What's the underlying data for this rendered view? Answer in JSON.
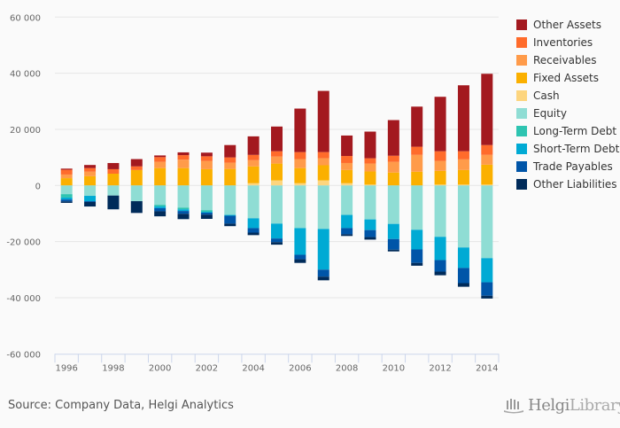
{
  "chart_data": {
    "type": "bar",
    "stacked": true,
    "title": "",
    "xlabel": "",
    "ylabel": "",
    "ylim": [
      -60000,
      60000
    ],
    "yticks": [
      60000,
      40000,
      20000,
      0,
      -20000,
      -40000,
      -60000
    ],
    "ytick_labels": [
      "60 000",
      "40 000",
      "20 000",
      "0",
      "-20 000",
      "-40 000",
      "-60 000"
    ],
    "grid": true,
    "legend_position": "right",
    "categories": [
      "1996",
      "1997",
      "1998",
      "1999",
      "2000",
      "2001",
      "2002",
      "2003",
      "2004",
      "2005",
      "2006",
      "2007",
      "2008",
      "2009",
      "2010",
      "2011",
      "2012",
      "2013",
      "2014"
    ],
    "xtick_labels": [
      "1996",
      "1998",
      "2000",
      "2002",
      "2004",
      "2006",
      "2008",
      "2010",
      "2012",
      "2014"
    ],
    "assets": [
      {
        "name": "Cash",
        "color": "#FDD57E",
        "values": [
          0,
          0,
          0,
          0,
          0,
          0,
          0,
          0,
          800,
          1800,
          800,
          1800,
          800,
          300,
          0,
          0,
          300,
          300,
          300
        ]
      },
      {
        "name": "Fixed Assets",
        "color": "#FBB000",
        "values": [
          2600,
          3300,
          4200,
          5500,
          6200,
          6200,
          5800,
          5900,
          6000,
          6000,
          5400,
          5400,
          4700,
          4700,
          4600,
          4900,
          4900,
          5200,
          7100
        ]
      },
      {
        "name": "Receivables",
        "color": "#FF9B4A",
        "values": [
          1300,
          1600,
          0,
          0,
          2200,
          3000,
          2900,
          2200,
          2200,
          2500,
          3200,
          2500,
          2500,
          2800,
          3800,
          6000,
          3500,
          3800,
          3500
        ]
      },
      {
        "name": "Inventories",
        "color": "#FF6B2B",
        "values": [
          1700,
          1300,
          1600,
          1300,
          1700,
          1600,
          1700,
          1900,
          1900,
          1900,
          2500,
          2200,
          2500,
          1900,
          2200,
          2900,
          3500,
          2900,
          3500
        ]
      },
      {
        "name": "Other Assets",
        "color": "#A3191F",
        "values": [
          400,
          1100,
          2200,
          2600,
          600,
          1000,
          1300,
          4400,
          6600,
          8800,
          15500,
          21800,
          7300,
          9500,
          12700,
          14300,
          19400,
          23500,
          25400
        ]
      }
    ],
    "liabilities": [
      {
        "name": "Equity",
        "color": "#8FDDD4",
        "values": [
          3100,
          3700,
          3600,
          5600,
          6900,
          7900,
          8800,
          10500,
          11700,
          13600,
          15200,
          15500,
          10500,
          12100,
          13700,
          15800,
          18300,
          22100,
          25900
        ]
      },
      {
        "name": "Long-Term Debt",
        "color": "#2EC4B1",
        "values": [
          1200,
          0,
          0,
          0,
          600,
          600,
          600,
          0,
          0,
          0,
          0,
          0,
          0,
          0,
          0,
          0,
          0,
          0,
          0
        ]
      },
      {
        "name": "Short-Term Debt",
        "color": "#00AAD4",
        "values": [
          700,
          1900,
          0,
          0,
          600,
          600,
          300,
          300,
          3500,
          5300,
          9500,
          14500,
          4700,
          3800,
          5400,
          7000,
          8300,
          7300,
          8600
        ]
      },
      {
        "name": "Trade Payables",
        "color": "#0055A8",
        "values": [
          700,
          300,
          0,
          0,
          1100,
          1000,
          700,
          2800,
          1600,
          1300,
          1600,
          2500,
          2200,
          2500,
          3800,
          4800,
          4100,
          5400,
          4800
        ]
      },
      {
        "name": "Other Liabilities",
        "color": "#002B5A",
        "values": [
          500,
          1600,
          4900,
          4200,
          1800,
          1900,
          1500,
          900,
          900,
          900,
          1300,
          1300,
          600,
          900,
          600,
          1000,
          1300,
          1300,
          1000
        ]
      }
    ],
    "legend": [
      {
        "name": "Other Assets",
        "color": "#A3191F"
      },
      {
        "name": "Inventories",
        "color": "#FF6B2B"
      },
      {
        "name": "Receivables",
        "color": "#FF9B4A"
      },
      {
        "name": "Fixed Assets",
        "color": "#FBB000"
      },
      {
        "name": "Cash",
        "color": "#FDD57E"
      },
      {
        "name": "Equity",
        "color": "#8FDDD4"
      },
      {
        "name": "Long-Term Debt",
        "color": "#2EC4B1"
      },
      {
        "name": "Short-Term Debt",
        "color": "#00AAD4"
      },
      {
        "name": "Trade Payables",
        "color": "#0055A8"
      },
      {
        "name": "Other Liabilities",
        "color": "#002B5A"
      }
    ]
  },
  "footer": {
    "source": "Source: Company Data, Helgi Analytics",
    "brand_bold": "Helgi",
    "brand_light": "Library."
  },
  "colors": {
    "grid": "#e6e6e6",
    "axis": "#ccd6eb",
    "background": "#fafafa"
  }
}
